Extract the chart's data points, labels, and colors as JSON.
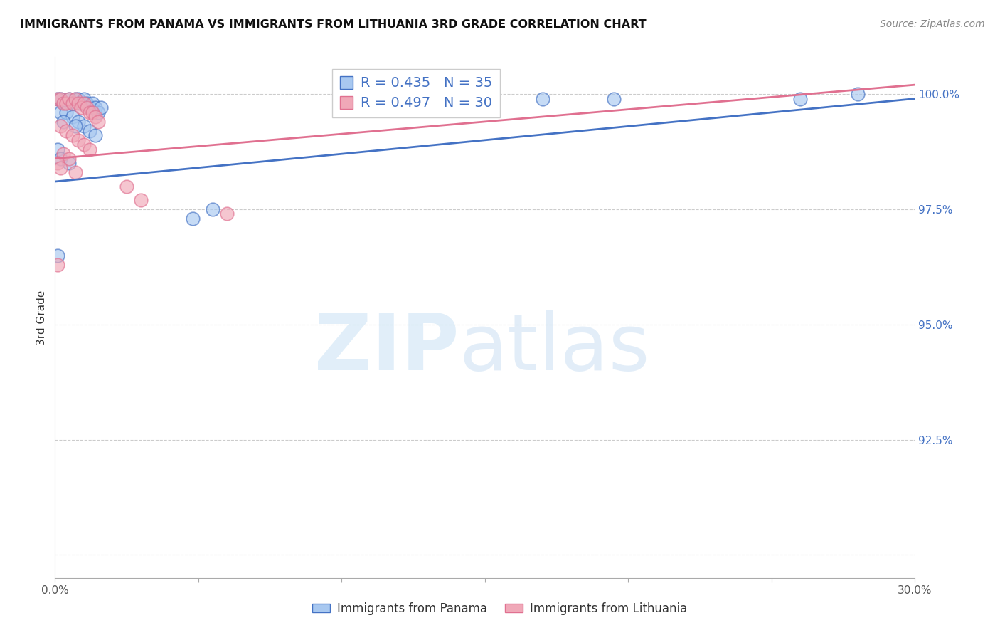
{
  "title": "IMMIGRANTS FROM PANAMA VS IMMIGRANTS FROM LITHUANIA 3RD GRADE CORRELATION CHART",
  "source": "Source: ZipAtlas.com",
  "ylabel": "3rd Grade",
  "xlim": [
    0.0,
    0.3
  ],
  "ylim": [
    0.895,
    1.008
  ],
  "x_ticks": [
    0.0,
    0.05,
    0.1,
    0.15,
    0.2,
    0.25,
    0.3
  ],
  "x_tick_labels": [
    "0.0%",
    "",
    "",
    "",
    "",
    "",
    "30.0%"
  ],
  "y_ticks": [
    0.9,
    0.925,
    0.95,
    0.975,
    1.0
  ],
  "y_tick_labels_right": [
    "",
    "92.5%",
    "95.0%",
    "97.5%",
    "100.0%"
  ],
  "R_panama": 0.435,
  "N_panama": 35,
  "R_lithuania": 0.497,
  "N_lithuania": 30,
  "panama_color": "#a8c8f0",
  "lithuania_color": "#f0a8b8",
  "panama_line_color": "#4472c4",
  "lithuania_line_color": "#e07090",
  "legend_label_panama": "Immigrants from Panama",
  "legend_label_lithuania": "Immigrants from Lithuania",
  "panama_x": [
    0.001,
    0.002,
    0.003,
    0.004,
    0.005,
    0.006,
    0.007,
    0.008,
    0.009,
    0.01,
    0.011,
    0.012,
    0.013,
    0.014,
    0.015,
    0.016,
    0.002,
    0.004,
    0.006,
    0.008,
    0.01,
    0.012,
    0.014,
    0.003,
    0.007,
    0.001,
    0.002,
    0.005,
    0.055,
    0.17,
    0.195,
    0.26,
    0.28,
    0.048,
    0.001
  ],
  "panama_y": [
    0.999,
    0.999,
    0.998,
    0.998,
    0.999,
    0.998,
    0.999,
    0.999,
    0.998,
    0.999,
    0.998,
    0.997,
    0.998,
    0.997,
    0.996,
    0.997,
    0.996,
    0.996,
    0.995,
    0.994,
    0.993,
    0.992,
    0.991,
    0.994,
    0.993,
    0.988,
    0.986,
    0.985,
    0.975,
    0.999,
    0.999,
    0.999,
    1.0,
    0.973,
    0.965
  ],
  "lithuania_x": [
    0.001,
    0.002,
    0.003,
    0.004,
    0.005,
    0.006,
    0.007,
    0.008,
    0.009,
    0.01,
    0.011,
    0.012,
    0.013,
    0.014,
    0.015,
    0.002,
    0.004,
    0.006,
    0.008,
    0.01,
    0.012,
    0.003,
    0.005,
    0.001,
    0.002,
    0.007,
    0.025,
    0.03,
    0.06,
    0.001
  ],
  "lithuania_y": [
    0.999,
    0.999,
    0.998,
    0.998,
    0.999,
    0.998,
    0.999,
    0.998,
    0.997,
    0.998,
    0.997,
    0.996,
    0.996,
    0.995,
    0.994,
    0.993,
    0.992,
    0.991,
    0.99,
    0.989,
    0.988,
    0.987,
    0.986,
    0.985,
    0.984,
    0.983,
    0.98,
    0.977,
    0.974,
    0.963
  ],
  "panama_trendline": [
    [
      0.0,
      0.3
    ],
    [
      0.981,
      0.999
    ]
  ],
  "lithuania_trendline": [
    [
      0.0,
      0.3
    ],
    [
      0.986,
      1.002
    ]
  ]
}
